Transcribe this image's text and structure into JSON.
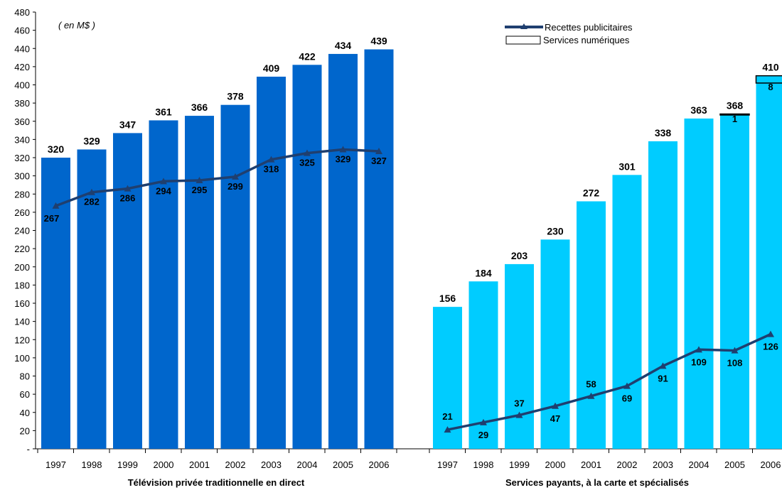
{
  "chart_data": {
    "type": "bar",
    "unit_note": "( en M$ )",
    "ylim": [
      0,
      480
    ],
    "y_ticks": [
      "-",
      "20",
      "40",
      "60",
      "80",
      "100",
      "120",
      "140",
      "160",
      "180",
      "200",
      "220",
      "240",
      "260",
      "280",
      "300",
      "320",
      "340",
      "360",
      "380",
      "400",
      "420",
      "440",
      "460",
      "480"
    ],
    "legend": {
      "line_label": "Recettes publicitaires",
      "box_label": "Services numériques",
      "placement": "top-right"
    },
    "groups": [
      {
        "title": "Télévision privée traditionnelle en direct",
        "categories": [
          "1997",
          "1998",
          "1999",
          "2000",
          "2001",
          "2002",
          "2003",
          "2004",
          "2005",
          "2006"
        ],
        "bar_color": "#0066CC",
        "totals": [
          320,
          329,
          347,
          361,
          366,
          378,
          409,
          422,
          434,
          439
        ],
        "digital_services": [
          0,
          0,
          0,
          0,
          0,
          0,
          0,
          0,
          0,
          0
        ],
        "advertising": [
          267,
          282,
          286,
          294,
          295,
          299,
          318,
          325,
          329,
          327
        ]
      },
      {
        "title": "Services payants, à la carte et spécialisés",
        "categories": [
          "1997",
          "1998",
          "1999",
          "2000",
          "2001",
          "2002",
          "2003",
          "2004",
          "2005",
          "2006"
        ],
        "bar_color": "#00CCFF",
        "totals": [
          156,
          184,
          203,
          230,
          272,
          301,
          338,
          363,
          368,
          410
        ],
        "digital_services": [
          0,
          0,
          0,
          0,
          0,
          0,
          0,
          0,
          1,
          8
        ],
        "digital_labels": [
          "",
          "",
          "",
          "",
          "",
          "",
          "",
          "",
          "1",
          "8"
        ],
        "advertising": [
          21,
          29,
          37,
          47,
          58,
          69,
          91,
          109,
          108,
          126
        ]
      }
    ],
    "line_color": "#1F3F6F"
  }
}
